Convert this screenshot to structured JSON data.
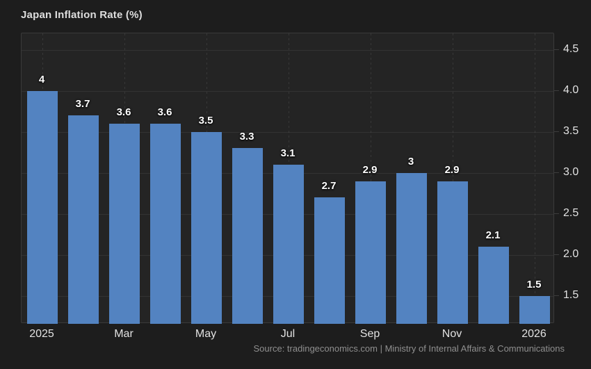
{
  "header": {
    "title": "Japan Inflation Rate (%)"
  },
  "chart_data": {
    "type": "bar",
    "title": "Japan Inflation Rate (%)",
    "values": [
      4,
      3.7,
      3.6,
      3.6,
      3.5,
      3.3,
      3.1,
      2.7,
      2.9,
      3,
      2.9,
      2.1,
      1.5
    ],
    "x_tick_labels": [
      {
        "index": 0,
        "label": "2025"
      },
      {
        "index": 2,
        "label": "Mar"
      },
      {
        "index": 4,
        "label": "May"
      },
      {
        "index": 6,
        "label": "Jul"
      },
      {
        "index": 8,
        "label": "Sep"
      },
      {
        "index": 10,
        "label": "Nov"
      },
      {
        "index": 12,
        "label": "2026"
      }
    ],
    "y_ticks": [
      "4.5",
      "4.0",
      "3.5",
      "3.0",
      "2.5",
      "2.0",
      "1.5"
    ],
    "ylim": [
      1.16,
      4.7
    ],
    "y_axis_side": "right",
    "grid": true,
    "legend": false,
    "colors": {
      "bar": "#5383c1",
      "background": "#1d1d1d",
      "plot_background": "#242424",
      "grid": "#3a3a3a",
      "text": "#e2e2e2",
      "muted_text": "#8f8f8f"
    }
  },
  "footer": {
    "source": "Source: tradingeconomics.com | Ministry of Internal Affairs & Communications"
  }
}
